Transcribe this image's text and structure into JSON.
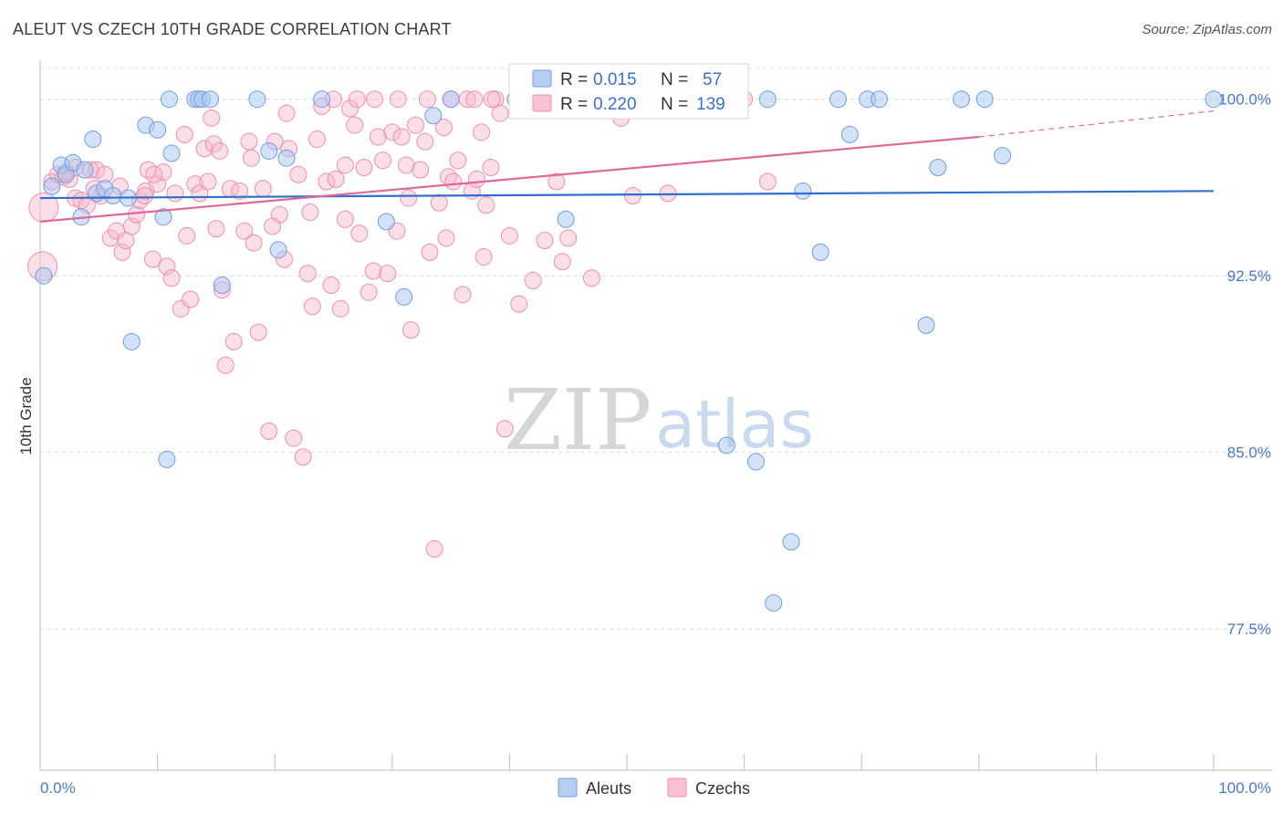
{
  "header": {
    "title": "ALEUT VS CZECH 10TH GRADE CORRELATION CHART",
    "source": "Source: ZipAtlas.com"
  },
  "watermark": {
    "zip": "ZIP",
    "atlas": "atlas"
  },
  "colors": {
    "aleut_fill": "#a9c6ef",
    "aleut_stroke": "#6f9ee0",
    "aleut_line": "#2f6fcd",
    "czech_fill": "#f7b7cb",
    "czech_stroke": "#ee8fad",
    "czech_line": "#e0689a",
    "tick_text": "#4a78c8",
    "grid": "#d9d9d9"
  },
  "legend_box": {
    "aleut": {
      "r_label": "R = ",
      "r_value": "0.015",
      "n_label": "N = ",
      "n_value": "57"
    },
    "czech": {
      "r_label": "R = ",
      "r_value": "0.220",
      "n_label": "N = ",
      "n_value": "139"
    }
  },
  "chart_data": {
    "type": "scatter",
    "title": "ALEUT VS CZECH 10TH GRADE CORRELATION CHART",
    "ylabel": "10th Grade",
    "xlabel": "",
    "xlim": [
      0,
      100
    ],
    "ylim": [
      71.5,
      101.5
    ],
    "x_tick_labels": [
      "0.0%",
      "100.0%"
    ],
    "y_ticks": [
      77.5,
      85.0,
      92.5,
      100.0
    ],
    "y_tick_labels": [
      "77.5%",
      "85.0%",
      "92.5%",
      "100.0%"
    ],
    "grid": "horizontal dashed",
    "legend_position": "bottom",
    "series": [
      {
        "name": "Aleuts",
        "r": 0.015,
        "n": 57,
        "trend": {
          "x": [
            0,
            100
          ],
          "y": [
            95.8,
            96.1
          ]
        },
        "points": [
          [
            0.3,
            92.5
          ],
          [
            1.0,
            96.3
          ],
          [
            1.8,
            97.2
          ],
          [
            2.2,
            96.8
          ],
          [
            2.8,
            97.3
          ],
          [
            3.5,
            95.0
          ],
          [
            3.8,
            97.0
          ],
          [
            4.5,
            98.3
          ],
          [
            4.8,
            96.0
          ],
          [
            5.5,
            96.2
          ],
          [
            6.2,
            95.9
          ],
          [
            7.5,
            95.8
          ],
          [
            7.8,
            89.7
          ],
          [
            9.0,
            98.9
          ],
          [
            10.0,
            98.7
          ],
          [
            10.5,
            95.0
          ],
          [
            10.8,
            84.7
          ],
          [
            11.0,
            100.0
          ],
          [
            11.2,
            97.7
          ],
          [
            13.2,
            100.0
          ],
          [
            13.5,
            100.0
          ],
          [
            13.8,
            100.0
          ],
          [
            14.5,
            100.0
          ],
          [
            15.5,
            92.1
          ],
          [
            18.5,
            100.0
          ],
          [
            19.5,
            97.8
          ],
          [
            20.3,
            93.6
          ],
          [
            21.0,
            97.5
          ],
          [
            24.0,
            100.0
          ],
          [
            29.5,
            94.8
          ],
          [
            31.0,
            91.6
          ],
          [
            33.5,
            99.3
          ],
          [
            35.0,
            100.0
          ],
          [
            40.5,
            100.0
          ],
          [
            44.0,
            100.0
          ],
          [
            44.8,
            94.9
          ],
          [
            49.0,
            100.0
          ],
          [
            53.0,
            100.0
          ],
          [
            55.0,
            100.0
          ],
          [
            56.0,
            100.0
          ],
          [
            58.5,
            85.3
          ],
          [
            61.0,
            84.6
          ],
          [
            62.0,
            100.0
          ],
          [
            62.5,
            78.6
          ],
          [
            64.0,
            81.2
          ],
          [
            65.0,
            96.1
          ],
          [
            66.5,
            93.5
          ],
          [
            68.0,
            100.0
          ],
          [
            69.0,
            98.5
          ],
          [
            70.5,
            100.0
          ],
          [
            71.5,
            100.0
          ],
          [
            75.5,
            90.4
          ],
          [
            76.5,
            97.1
          ],
          [
            78.5,
            100.0
          ],
          [
            80.5,
            100.0
          ],
          [
            82.0,
            97.6
          ],
          [
            100.0,
            100.0
          ]
        ]
      },
      {
        "name": "Czechs",
        "r": 0.22,
        "n": 139,
        "trend": {
          "x": [
            0,
            80
          ],
          "y": [
            94.8,
            98.4
          ]
        },
        "trend_dashed": {
          "x": [
            80,
            100
          ],
          "y": [
            98.4,
            99.5
          ]
        },
        "points": [
          [
            0.2,
            92.9
          ],
          [
            0.3,
            95.4
          ],
          [
            1.0,
            96.5
          ],
          [
            1.5,
            96.8
          ],
          [
            2.0,
            96.7
          ],
          [
            2.5,
            96.6
          ],
          [
            3.0,
            95.8
          ],
          [
            3.5,
            95.7
          ],
          [
            4.0,
            95.5
          ],
          [
            4.3,
            97.0
          ],
          [
            4.8,
            97.0
          ],
          [
            5.2,
            95.9
          ],
          [
            5.5,
            96.8
          ],
          [
            6.0,
            94.1
          ],
          [
            6.5,
            94.4
          ],
          [
            7.0,
            93.5
          ],
          [
            7.3,
            94.0
          ],
          [
            7.8,
            94.6
          ],
          [
            8.2,
            95.1
          ],
          [
            8.5,
            95.7
          ],
          [
            9.0,
            96.1
          ],
          [
            9.2,
            97.0
          ],
          [
            9.6,
            93.2
          ],
          [
            10.0,
            96.4
          ],
          [
            10.5,
            96.9
          ],
          [
            10.8,
            92.9
          ],
          [
            11.2,
            92.4
          ],
          [
            11.5,
            96.0
          ],
          [
            12.0,
            91.1
          ],
          [
            12.5,
            94.2
          ],
          [
            12.8,
            91.5
          ],
          [
            13.2,
            96.4
          ],
          [
            13.6,
            96.0
          ],
          [
            14.0,
            97.9
          ],
          [
            14.3,
            96.5
          ],
          [
            14.8,
            98.1
          ],
          [
            15.0,
            94.5
          ],
          [
            15.5,
            91.9
          ],
          [
            15.8,
            88.7
          ],
          [
            16.2,
            96.2
          ],
          [
            16.5,
            89.7
          ],
          [
            17.0,
            96.1
          ],
          [
            17.4,
            94.4
          ],
          [
            17.8,
            98.2
          ],
          [
            18.2,
            93.9
          ],
          [
            18.6,
            90.1
          ],
          [
            19.0,
            96.2
          ],
          [
            19.5,
            85.9
          ],
          [
            20.0,
            98.2
          ],
          [
            20.4,
            95.1
          ],
          [
            20.8,
            93.2
          ],
          [
            21.2,
            97.9
          ],
          [
            21.6,
            85.6
          ],
          [
            22.0,
            96.8
          ],
          [
            22.4,
            84.8
          ],
          [
            22.8,
            92.6
          ],
          [
            23.2,
            91.2
          ],
          [
            23.6,
            98.3
          ],
          [
            24.0,
            99.7
          ],
          [
            24.4,
            96.5
          ],
          [
            24.8,
            92.1
          ],
          [
            25.2,
            96.6
          ],
          [
            25.6,
            91.1
          ],
          [
            26.0,
            97.2
          ],
          [
            26.4,
            99.6
          ],
          [
            26.8,
            98.9
          ],
          [
            27.2,
            94.3
          ],
          [
            27.6,
            97.1
          ],
          [
            28.0,
            91.8
          ],
          [
            28.4,
            92.7
          ],
          [
            28.8,
            98.4
          ],
          [
            29.2,
            97.4
          ],
          [
            29.6,
            92.6
          ],
          [
            30.0,
            98.6
          ],
          [
            30.4,
            94.4
          ],
          [
            30.8,
            98.4
          ],
          [
            31.2,
            97.2
          ],
          [
            31.6,
            90.2
          ],
          [
            32.0,
            98.9
          ],
          [
            32.4,
            97.0
          ],
          [
            32.8,
            98.2
          ],
          [
            33.2,
            93.5
          ],
          [
            33.6,
            80.9
          ],
          [
            34.0,
            95.6
          ],
          [
            34.4,
            98.8
          ],
          [
            34.8,
            96.7
          ],
          [
            35.2,
            96.5
          ],
          [
            35.6,
            97.4
          ],
          [
            36.0,
            91.7
          ],
          [
            36.4,
            100.0
          ],
          [
            36.8,
            96.1
          ],
          [
            37.2,
            96.6
          ],
          [
            37.6,
            98.6
          ],
          [
            38.0,
            95.5
          ],
          [
            38.4,
            97.1
          ],
          [
            38.8,
            100.0
          ],
          [
            39.2,
            99.4
          ],
          [
            39.6,
            86.0
          ],
          [
            40.0,
            94.2
          ],
          [
            43.0,
            94.0
          ],
          [
            44.0,
            96.5
          ],
          [
            47.0,
            92.4
          ],
          [
            3.0,
            97.1
          ],
          [
            6.8,
            96.3
          ],
          [
            9.7,
            96.8
          ],
          [
            12.3,
            98.5
          ],
          [
            14.6,
            99.2
          ],
          [
            18.0,
            97.5
          ],
          [
            21.0,
            99.4
          ],
          [
            25.0,
            100.0
          ],
          [
            27.0,
            100.0
          ],
          [
            28.5,
            100.0
          ],
          [
            30.5,
            100.0
          ],
          [
            33.0,
            100.0
          ],
          [
            35.0,
            100.0
          ],
          [
            37.0,
            100.0
          ],
          [
            38.5,
            100.0
          ],
          [
            41.0,
            100.0
          ],
          [
            46.0,
            100.0
          ],
          [
            48.0,
            100.0
          ],
          [
            52.0,
            100.0
          ],
          [
            55.0,
            100.0
          ],
          [
            60.0,
            100.0
          ],
          [
            62.0,
            96.5
          ],
          [
            42.0,
            92.3
          ],
          [
            45.0,
            94.1
          ],
          [
            49.5,
            99.2
          ],
          [
            50.5,
            95.9
          ],
          [
            53.5,
            96.0
          ],
          [
            2.2,
            96.9
          ],
          [
            4.6,
            96.2
          ],
          [
            8.9,
            95.9
          ],
          [
            15.3,
            97.8
          ],
          [
            19.8,
            94.6
          ],
          [
            23.0,
            95.2
          ],
          [
            26.0,
            94.9
          ],
          [
            31.4,
            95.8
          ],
          [
            34.6,
            94.1
          ],
          [
            37.8,
            93.3
          ],
          [
            40.8,
            91.3
          ],
          [
            44.5,
            93.1
          ]
        ]
      }
    ]
  },
  "bottom_legend": {
    "aleuts": "Aleuts",
    "czechs": "Czechs"
  }
}
